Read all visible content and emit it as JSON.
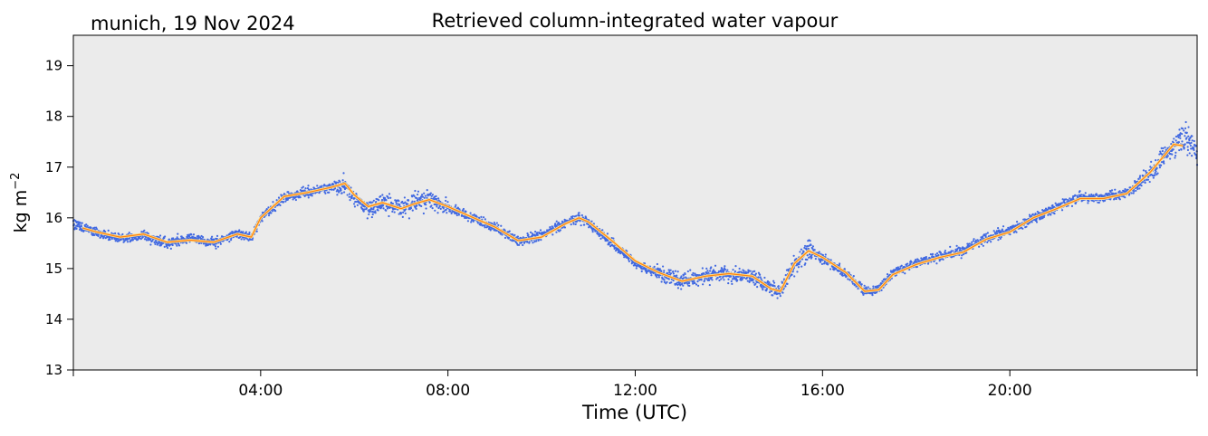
{
  "figure": {
    "location_date": "munich, 19 Nov 2024",
    "title": "Retrieved column-integrated water vapour"
  },
  "chart_data": {
    "type": "scatter",
    "title": "Retrieved column-integrated water vapour",
    "annotation": "munich, 19 Nov 2024",
    "xlabel": "Time (UTC)",
    "ylabel": "kg m",
    "ylabel_superscript": "−2",
    "xlim": [
      "00:00",
      "24:00"
    ],
    "ylim": [
      13,
      19.6
    ],
    "x_ticks": [
      "04:00",
      "08:00",
      "12:00",
      "16:00",
      "20:00"
    ],
    "y_ticks": [
      "13",
      "14",
      "15",
      "16",
      "17",
      "18",
      "19"
    ],
    "grid": false,
    "background": "#ebebeb",
    "series": [
      {
        "style": "scatter",
        "color": "#4169e1",
        "x_hours": [
          0.0,
          0.5,
          1.0,
          1.5,
          2.0,
          2.5,
          3.0,
          3.5,
          3.8,
          4.0,
          4.5,
          5.0,
          5.5,
          5.8,
          6.0,
          6.3,
          6.6,
          7.0,
          7.3,
          7.6,
          8.0,
          8.5,
          9.0,
          9.5,
          10.0,
          10.5,
          10.8,
          11.0,
          11.5,
          12.0,
          12.5,
          13.0,
          13.5,
          14.0,
          14.5,
          14.9,
          15.1,
          15.4,
          15.7,
          16.0,
          16.5,
          16.9,
          17.2,
          17.5,
          18.0,
          18.5,
          19.0,
          19.5,
          20.0,
          20.5,
          21.0,
          21.5,
          22.0,
          22.5,
          23.0,
          23.5,
          23.8,
          24.0
        ],
        "y_values": [
          15.9,
          15.7,
          15.6,
          15.65,
          15.5,
          15.6,
          15.5,
          15.7,
          15.6,
          16.0,
          16.4,
          16.5,
          16.6,
          16.65,
          16.4,
          16.2,
          16.3,
          16.2,
          16.3,
          16.35,
          16.2,
          16.0,
          15.8,
          15.55,
          15.65,
          15.9,
          16.0,
          15.9,
          15.5,
          15.1,
          14.9,
          14.75,
          14.85,
          14.9,
          14.85,
          14.6,
          14.55,
          15.1,
          15.35,
          15.2,
          14.9,
          14.55,
          14.6,
          14.9,
          15.1,
          15.25,
          15.35,
          15.6,
          15.75,
          16.0,
          16.2,
          16.4,
          16.4,
          16.5,
          16.9,
          17.4,
          17.6,
          17.2
        ]
      },
      {
        "style": "line",
        "color": "#ff7f0e",
        "x_hours": [
          0.2,
          0.5,
          1.0,
          1.5,
          2.0,
          2.5,
          3.0,
          3.5,
          3.8,
          4.0,
          4.5,
          5.0,
          5.5,
          5.8,
          6.0,
          6.3,
          6.6,
          7.0,
          7.3,
          7.6,
          8.0,
          8.5,
          9.0,
          9.5,
          10.0,
          10.5,
          10.8,
          11.0,
          11.5,
          12.0,
          12.5,
          13.0,
          13.5,
          14.0,
          14.5,
          14.9,
          15.1,
          15.4,
          15.7,
          16.0,
          16.5,
          16.9,
          17.2,
          17.5,
          18.0,
          18.5,
          19.0,
          19.5,
          20.0,
          20.5,
          21.0,
          21.5,
          22.0,
          22.5,
          23.0,
          23.5,
          23.7
        ],
        "y_values": [
          15.8,
          15.72,
          15.62,
          15.68,
          15.52,
          15.56,
          15.52,
          15.68,
          15.62,
          16.0,
          16.42,
          16.5,
          16.6,
          16.68,
          16.45,
          16.22,
          16.3,
          16.18,
          16.28,
          16.36,
          16.22,
          16.02,
          15.82,
          15.55,
          15.62,
          15.88,
          16.0,
          15.92,
          15.55,
          15.15,
          14.92,
          14.75,
          14.85,
          14.9,
          14.85,
          14.6,
          14.55,
          15.1,
          15.35,
          15.22,
          14.92,
          14.55,
          14.58,
          14.88,
          15.08,
          15.22,
          15.32,
          15.58,
          15.72,
          16.0,
          16.18,
          16.38,
          16.38,
          16.48,
          16.9,
          17.45,
          17.42
        ]
      }
    ]
  }
}
